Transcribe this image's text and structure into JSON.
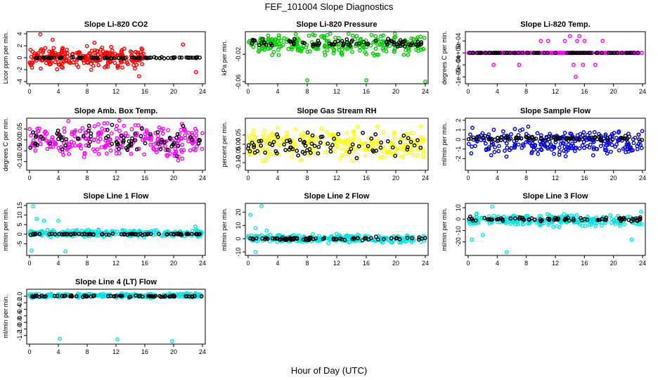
{
  "figure": {
    "title": "FEF_101004  Slope Diagnostics",
    "xlabel": "Hour of Day (UTC)"
  },
  "chart_data": [
    {
      "type": "scatter",
      "title": "Slope Li-820 CO2",
      "ylabel": "Licor ppm per min.",
      "xlim": [
        0,
        24
      ],
      "ylim": [
        -4,
        4
      ],
      "xticks": [
        "0",
        "4",
        "8",
        "12",
        "16",
        "20",
        "24"
      ],
      "yticks": [
        {
          "value": -4,
          "label": "-4"
        },
        {
          "value": -2,
          "label": "-2"
        },
        {
          "value": 0,
          "label": "0"
        },
        {
          "value": 2,
          "label": "2"
        },
        {
          "value": 4,
          "label": "4"
        }
      ],
      "series": [
        {
          "color": "#ff0000",
          "band": [
            0,
            16
          ],
          "spread": 1.4,
          "center": 0.0,
          "outliers": [
            [
              1.5,
              3.9
            ],
            [
              3.2,
              3.0
            ],
            [
              9.0,
              2.5
            ],
            [
              15.2,
              -3.1
            ],
            [
              21.3,
              2.2
            ],
            [
              23.1,
              -2.4
            ]
          ]
        },
        {
          "color": "#000000",
          "band": [
            0,
            24
          ],
          "spread": 0.08,
          "center": 0.0
        }
      ]
    },
    {
      "type": "scatter",
      "title": "Slope Li-820 Pressure",
      "ylabel": "kPa per min.",
      "xlim": [
        0,
        24
      ],
      "ylim": [
        -0.06,
        0.01
      ],
      "xticks": [
        "0",
        "4",
        "8",
        "12",
        "16",
        "20",
        "24"
      ],
      "yticks": [
        {
          "value": -0.06,
          "label": "-0.06"
        },
        {
          "value": -0.02,
          "label": "-0.02"
        }
      ],
      "series": [
        {
          "color": "#00cc00",
          "band": [
            0,
            24
          ],
          "spread": 0.012,
          "center": -0.006,
          "outliers": [
            [
              8.0,
              -0.058
            ],
            [
              16.0,
              -0.058
            ],
            [
              24.0,
              -0.06
            ]
          ]
        },
        {
          "color": "#000000",
          "band": [
            0,
            24
          ],
          "spread": 0.005,
          "center": -0.004
        }
      ]
    },
    {
      "type": "scatter",
      "title": "Slope Li-820 Temp.",
      "ylabel": "degrees C per min.",
      "xlim": [
        0,
        24
      ],
      "ylim": [
        -0.0012,
        0.0008
      ],
      "xticks": [
        "0",
        "4",
        "8",
        "12",
        "16",
        "20",
        "24"
      ],
      "yticks": [
        {
          "value": -0.001,
          "label": "-1e-03"
        },
        {
          "value": -0.0005,
          "label": "-5e-04"
        },
        {
          "value": 0,
          "label": "0e+00"
        },
        {
          "value": 0.0005,
          "label": "5e-04"
        }
      ],
      "series": [
        {
          "color": "#ff00ff",
          "band": [
            0,
            24
          ],
          "spread": 0,
          "center": 0,
          "outliers": [
            [
              3.5,
              -0.0005
            ],
            [
              7.0,
              -0.0005
            ],
            [
              10.0,
              0.0005
            ],
            [
              11.0,
              0.0005
            ],
            [
              13.3,
              0.0005
            ],
            [
              14.0,
              0.0007
            ],
            [
              14.5,
              -0.0005
            ],
            [
              14.8,
              -0.001
            ],
            [
              15.0,
              0.0005
            ],
            [
              15.3,
              0.0007
            ],
            [
              15.8,
              -0.0005
            ],
            [
              16.0,
              0.0005
            ],
            [
              17.5,
              -0.0005
            ],
            [
              18.5,
              0.0005
            ]
          ]
        },
        {
          "color": "#000000",
          "band": [
            0,
            24
          ],
          "spread": 0,
          "center": 0
        }
      ]
    },
    {
      "type": "scatter",
      "title": "Slope Amb. Box Temp.",
      "ylabel": "degrees C per min.",
      "xlim": [
        0,
        24
      ],
      "ylim": [
        -0.13,
        0.09
      ],
      "xticks": [
        "0",
        "4",
        "8",
        "12",
        "16",
        "20",
        "24"
      ],
      "yticks": [
        {
          "value": -0.1,
          "label": "-0.10"
        },
        {
          "value": -0.05,
          "label": "-0.05"
        },
        {
          "value": 0,
          "label": "0.00"
        },
        {
          "value": 0.05,
          "label": "0.05"
        }
      ],
      "series": [
        {
          "color": "#ff00ff",
          "band": [
            0,
            24
          ],
          "spread": 0.07,
          "center": 0.0
        },
        {
          "color": "#000000",
          "band": [
            0,
            24
          ],
          "spread": 0.05,
          "center": 0.0
        }
      ]
    },
    {
      "type": "scatter",
      "title": "Slope Gas Stream RH",
      "ylabel": "percent per min.",
      "xlim": [
        0,
        24
      ],
      "ylim": [
        -0.13,
        0.13
      ],
      "xticks": [
        "0",
        "4",
        "8",
        "12",
        "16",
        "20",
        "24"
      ],
      "yticks": [
        {
          "value": -0.1,
          "label": "-0.10"
        },
        {
          "value": -0.05,
          "label": "-0.05"
        },
        {
          "value": 0,
          "label": "0.00"
        },
        {
          "value": 0.05,
          "label": "0.05"
        }
      ],
      "series": [
        {
          "color": "#ffff00",
          "band": [
            0,
            24
          ],
          "spread": 0.07,
          "center": 0.0
        },
        {
          "color": "#000000",
          "band": [
            0,
            24
          ],
          "spread": 0.05,
          "center": 0.0
        }
      ]
    },
    {
      "type": "scatter",
      "title": "Slope Sample Flow",
      "ylabel": "ml/min per min.",
      "xlim": [
        0,
        24
      ],
      "ylim": [
        -3,
        2
      ],
      "xticks": [
        "0",
        "4",
        "8",
        "12",
        "16",
        "20",
        "24"
      ],
      "yticks": [
        {
          "value": -2,
          "label": "-2"
        },
        {
          "value": -1,
          "label": "-1"
        },
        {
          "value": 0,
          "label": "0"
        },
        {
          "value": 1,
          "label": "1"
        },
        {
          "value": 2,
          "label": "2"
        }
      ],
      "series": [
        {
          "color": "#0000dd",
          "band": [
            0,
            24
          ],
          "spread": 1.1,
          "center": -0.3
        },
        {
          "color": "#000000",
          "band": [
            0,
            24
          ],
          "spread": 0.2,
          "center": 0.1
        }
      ]
    },
    {
      "type": "scatter",
      "title": "Slope Line 1 Flow",
      "ylabel": "ml/min per min.",
      "xlim": [
        0,
        24
      ],
      "ylim": [
        -10,
        15
      ],
      "xticks": [
        "0",
        "4",
        "8",
        "12",
        "16",
        "20",
        "24"
      ],
      "yticks": [
        {
          "value": -5,
          "label": "-5"
        },
        {
          "value": 0,
          "label": "0"
        },
        {
          "value": 5,
          "label": "5"
        },
        {
          "value": 10,
          "label": "10"
        },
        {
          "value": 15,
          "label": "15"
        }
      ],
      "series": [
        {
          "color": "#00e5e5",
          "band": [
            0,
            24
          ],
          "spread": 1.5,
          "center": 0.5,
          "outliers": [
            [
              0.3,
              -8.5
            ],
            [
              0.5,
              14.5
            ],
            [
              1.0,
              8.0
            ],
            [
              2.0,
              7.0
            ],
            [
              5.0,
              -9.0
            ],
            [
              4.0,
              7.0
            ],
            [
              23.0,
              4.0
            ]
          ]
        },
        {
          "color": "#000000",
          "band": [
            0,
            24
          ],
          "spread": 0.3,
          "center": 0.0
        }
      ]
    },
    {
      "type": "scatter",
      "title": "Slope Line 2 Flow",
      "ylabel": "ml/min per min.",
      "xlim": [
        0,
        24
      ],
      "ylim": [
        -11,
        25
      ],
      "xticks": [
        "0",
        "4",
        "8",
        "12",
        "16",
        "20",
        "24"
      ],
      "yticks": [
        {
          "value": -10,
          "label": "-10"
        },
        {
          "value": 0,
          "label": "0"
        },
        {
          "value": 10,
          "label": "10"
        },
        {
          "value": 20,
          "label": "20"
        }
      ],
      "series": [
        {
          "color": "#00e5e5",
          "band": [
            0,
            24
          ],
          "spread": 2.5,
          "center": 0.0,
          "outliers": [
            [
              0.3,
              18.0
            ],
            [
              1.8,
              24.5
            ],
            [
              1.0,
              8.0
            ],
            [
              2.5,
              6.0
            ],
            [
              3.0,
              3.0
            ],
            [
              1.0,
              -10.0
            ]
          ]
        },
        {
          "color": "#000000",
          "band": [
            0,
            24
          ],
          "spread": 1.0,
          "center": 0.0
        }
      ]
    },
    {
      "type": "scatter",
      "title": "Slope Line 3 Flow",
      "ylabel": "ml/min per min.",
      "xlim": [
        0,
        24
      ],
      "ylim": [
        -30,
        12
      ],
      "xticks": [
        "0",
        "4",
        "8",
        "12",
        "16",
        "20",
        "24"
      ],
      "yticks": [
        {
          "value": -20,
          "label": "-20"
        },
        {
          "value": -10,
          "label": "-10"
        },
        {
          "value": 0,
          "label": "0"
        },
        {
          "value": 10,
          "label": "10"
        }
      ],
      "series": [
        {
          "color": "#00e5e5",
          "band": [
            0,
            24
          ],
          "spread": 4.0,
          "center": -1.0,
          "outliers": [
            [
              3.3,
              11.0
            ],
            [
              5.3,
              -29.0
            ],
            [
              2.0,
              -14.0
            ],
            [
              0.5,
              -18.0
            ],
            [
              22.5,
              -18.0
            ],
            [
              23.8,
              6.5
            ]
          ]
        },
        {
          "color": "#000000",
          "band": [
            0,
            24
          ],
          "spread": 1.5,
          "center": 0.0
        }
      ]
    },
    {
      "type": "scatter",
      "title": "Slope Line 4 (LT) Flow",
      "ylabel": "ml/min per min.",
      "xlim": [
        0,
        24
      ],
      "ylim": [
        -1.4,
        0.15
      ],
      "xticks": [
        "0",
        "4",
        "8",
        "12",
        "16",
        "20",
        "24"
      ],
      "yticks": [
        {
          "value": -1.2,
          "label": "-1.2"
        },
        {
          "value": -1.0,
          "label": "-1.0"
        },
        {
          "value": -0.8,
          "label": "-0.8"
        },
        {
          "value": -0.6,
          "label": "-0.6"
        },
        {
          "value": -0.4,
          "label": "-0.4"
        },
        {
          "value": -0.2,
          "label": "-0.2"
        },
        {
          "value": 0.0,
          "label": "0.0"
        }
      ],
      "series": [
        {
          "color": "#00e5e5",
          "band": [
            0,
            24
          ],
          "spread": 0.05,
          "center": 0.02,
          "outliers": [
            [
              4.2,
              -1.3
            ],
            [
              12.2,
              -1.32
            ],
            [
              19.8,
              -1.38
            ]
          ]
        },
        {
          "color": "#000000",
          "band": [
            0,
            24
          ],
          "spread": 0.02,
          "center": 0.0
        }
      ]
    }
  ]
}
